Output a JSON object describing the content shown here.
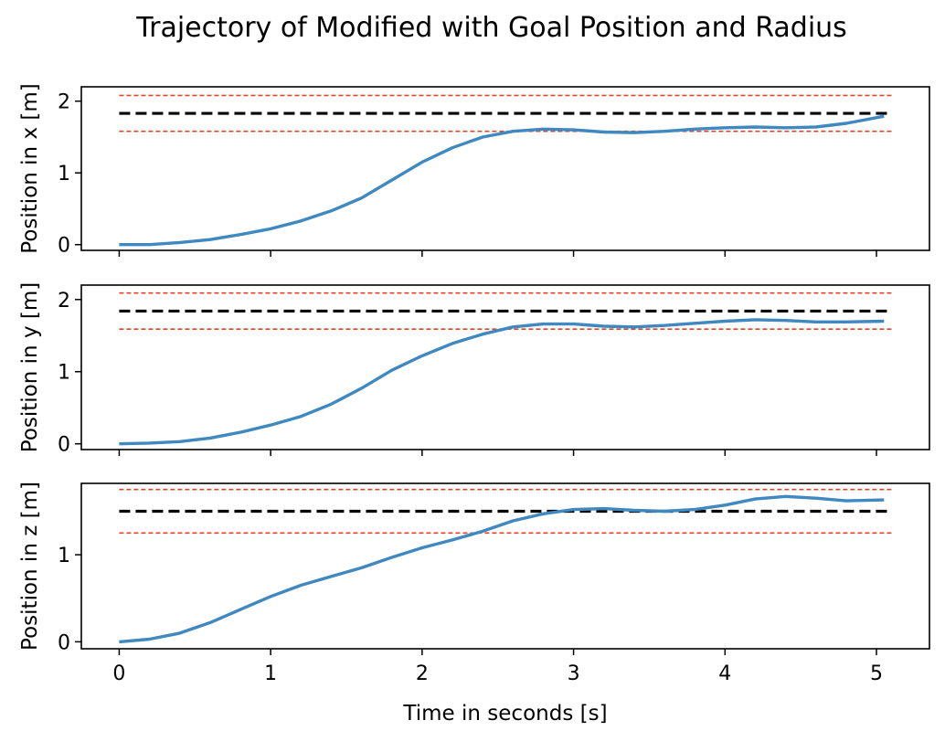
{
  "chart_data": {
    "type": "line",
    "title": "Trajectory of Modified with Goal Position and Radius",
    "xlabel": "Time in seconds [s]",
    "xlim": [
      -0.25,
      5.35
    ],
    "xticks": [
      0,
      1,
      2,
      3,
      4,
      5
    ],
    "colors": {
      "trajectory": "#3f88c0",
      "goal": "#000000",
      "radius": "#e0452a"
    },
    "subplots": [
      {
        "ylabel": "Position in x [m]",
        "ylim": [
          -0.08,
          2.2
        ],
        "yticks": [
          0,
          1,
          2
        ],
        "goal": 1.83,
        "radius_bounds": [
          1.58,
          2.08
        ],
        "x": [
          0,
          0.2,
          0.4,
          0.6,
          0.8,
          1.0,
          1.2,
          1.4,
          1.6,
          1.8,
          2.0,
          2.2,
          2.4,
          2.6,
          2.8,
          3.0,
          3.2,
          3.4,
          3.6,
          3.8,
          4.0,
          4.2,
          4.4,
          4.6,
          4.8,
          5.05
        ],
        "y": [
          0.0,
          0.0,
          0.03,
          0.07,
          0.14,
          0.22,
          0.33,
          0.47,
          0.65,
          0.9,
          1.15,
          1.35,
          1.5,
          1.58,
          1.61,
          1.6,
          1.57,
          1.56,
          1.58,
          1.61,
          1.63,
          1.64,
          1.63,
          1.64,
          1.69,
          1.79
        ]
      },
      {
        "ylabel": "Position in y [m]",
        "ylim": [
          -0.08,
          2.2
        ],
        "yticks": [
          0,
          1,
          2
        ],
        "goal": 1.84,
        "radius_bounds": [
          1.59,
          2.09
        ],
        "x": [
          0,
          0.2,
          0.4,
          0.6,
          0.8,
          1.0,
          1.2,
          1.4,
          1.6,
          1.8,
          2.0,
          2.2,
          2.4,
          2.6,
          2.8,
          3.0,
          3.2,
          3.4,
          3.6,
          3.8,
          4.0,
          4.2,
          4.4,
          4.6,
          4.8,
          5.05
        ],
        "y": [
          0.0,
          0.01,
          0.03,
          0.08,
          0.16,
          0.26,
          0.38,
          0.55,
          0.77,
          1.02,
          1.22,
          1.39,
          1.52,
          1.62,
          1.66,
          1.66,
          1.63,
          1.62,
          1.64,
          1.67,
          1.7,
          1.72,
          1.71,
          1.69,
          1.69,
          1.7
        ]
      },
      {
        "ylabel": "Position in z [m]",
        "ylim": [
          -0.08,
          1.82
        ],
        "yticks": [
          0,
          1
        ],
        "goal": 1.5,
        "radius_bounds": [
          1.25,
          1.75
        ],
        "x": [
          0,
          0.2,
          0.4,
          0.6,
          0.8,
          1.0,
          1.2,
          1.4,
          1.6,
          1.8,
          2.0,
          2.2,
          2.4,
          2.6,
          2.8,
          3.0,
          3.2,
          3.4,
          3.6,
          3.8,
          4.0,
          4.2,
          4.4,
          4.6,
          4.8,
          5.05
        ],
        "y": [
          0.0,
          0.03,
          0.1,
          0.22,
          0.37,
          0.52,
          0.65,
          0.75,
          0.85,
          0.97,
          1.08,
          1.17,
          1.27,
          1.39,
          1.47,
          1.52,
          1.53,
          1.51,
          1.5,
          1.52,
          1.57,
          1.64,
          1.67,
          1.65,
          1.62,
          1.63
        ]
      }
    ]
  }
}
